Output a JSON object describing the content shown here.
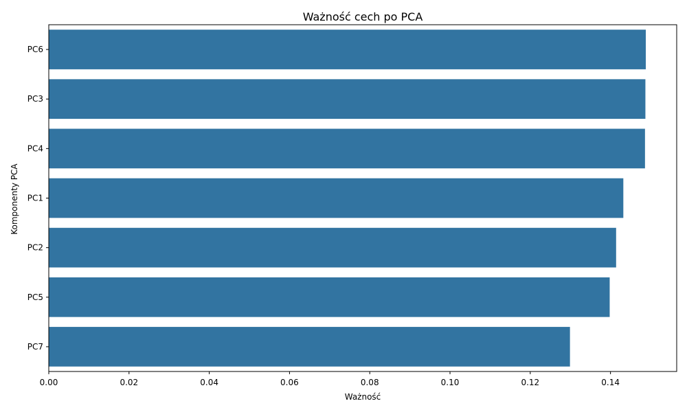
{
  "chart_data": {
    "type": "bar",
    "orientation": "horizontal",
    "title": "Ważność cech po PCA",
    "xlabel": "Ważność",
    "ylabel": "Komponenty PCA",
    "categories": [
      "PC6",
      "PC3",
      "PC4",
      "PC1",
      "PC2",
      "PC5",
      "PC7"
    ],
    "values": [
      0.1488,
      0.1487,
      0.1486,
      0.1432,
      0.1414,
      0.1398,
      0.1299
    ],
    "xlim": [
      0,
      0.1565
    ],
    "xticks": [
      "0.00",
      "0.02",
      "0.04",
      "0.06",
      "0.08",
      "0.10",
      "0.12",
      "0.14"
    ],
    "grid": false,
    "legend": "none",
    "colors": {
      "bar": "#3274a1",
      "axis": "#000000",
      "background": "#ffffff"
    }
  }
}
